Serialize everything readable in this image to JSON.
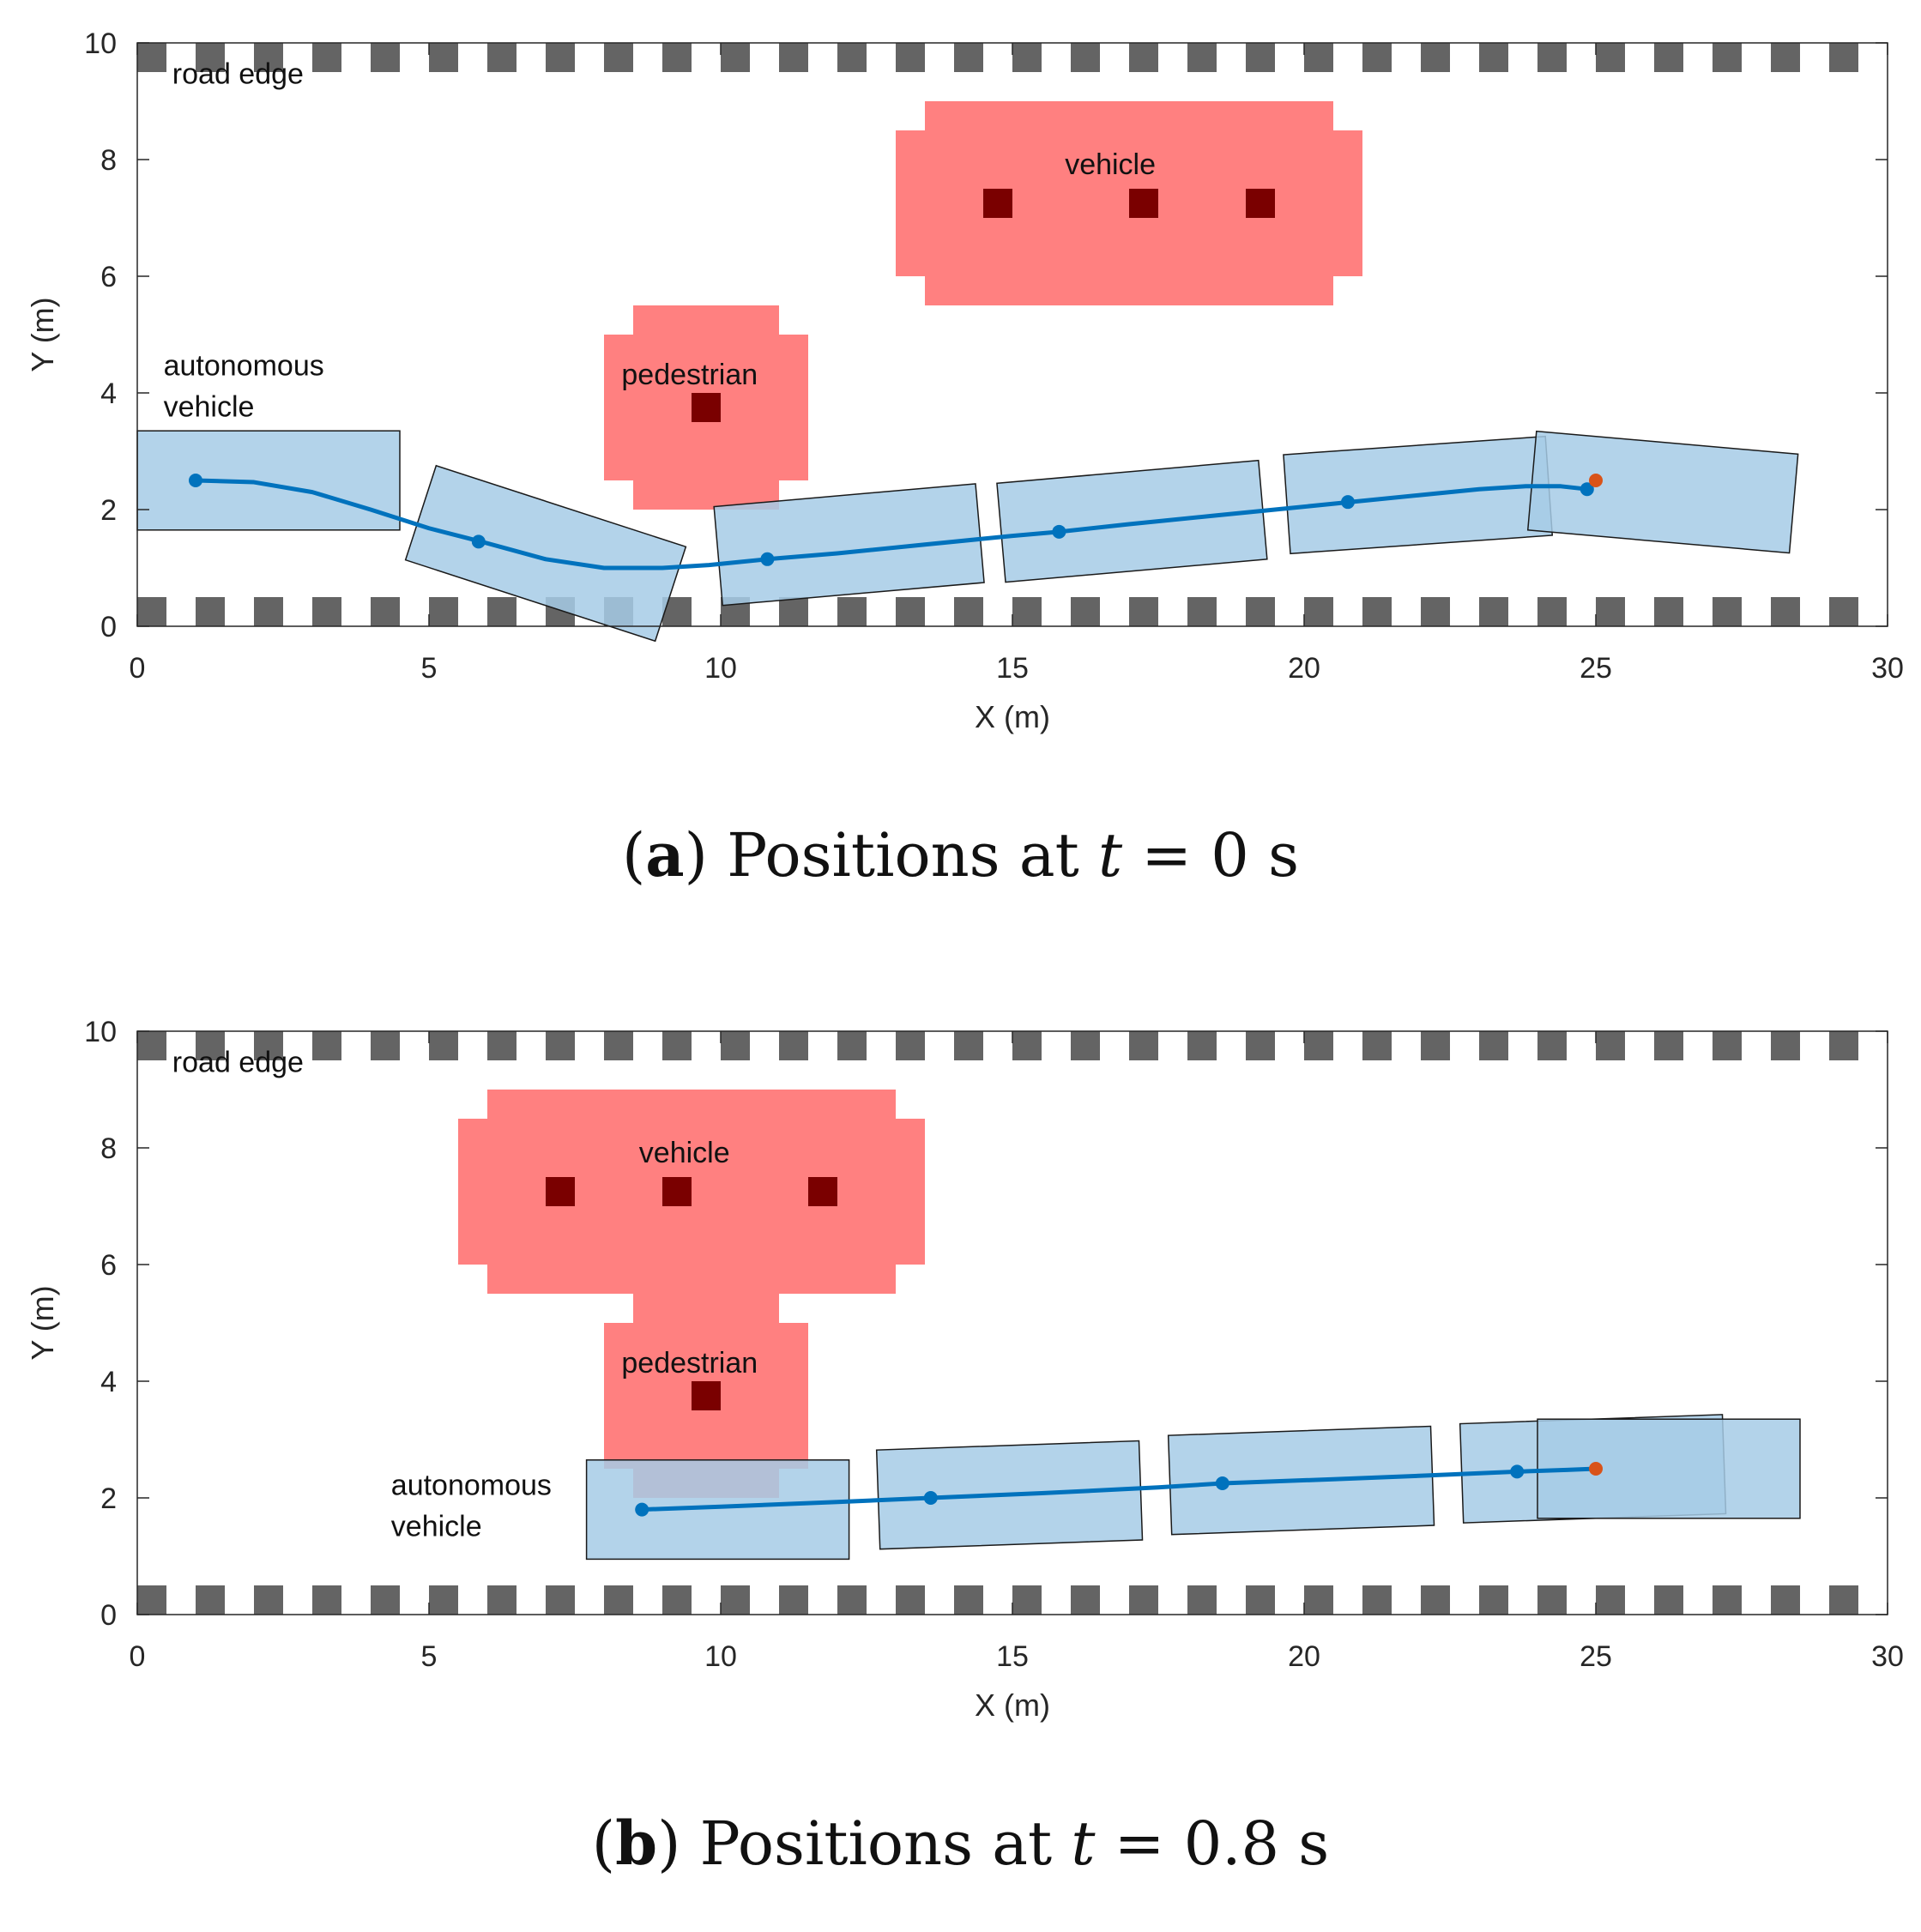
{
  "colors": {
    "ego_fill": "#a6cbe6",
    "ego_overlap": "#4682b4",
    "path": "#0072bd",
    "goal": "#d95319",
    "occupancy": "#ff8080",
    "occupancy_center": "#7a0000",
    "road_marking": "#646464",
    "axis": "#262626"
  },
  "chart_data": [
    {
      "type": "scatter",
      "panel": "a",
      "caption": {
        "label": "a",
        "text": "Positions at",
        "var": "t",
        "rest": "= 0 s"
      },
      "xlabel": "X (m)",
      "ylabel": "Y (m)",
      "xlim": [
        0,
        30
      ],
      "ylim": [
        0,
        10
      ],
      "xticks": [
        0,
        5,
        10,
        15,
        20,
        25,
        30
      ],
      "yticks": [
        0,
        2,
        4,
        6,
        8,
        10
      ],
      "annotations": [
        {
          "name": "road-edge",
          "lines": [
            "road edge"
          ],
          "x": 0.6,
          "y": 9.3
        },
        {
          "name": "ego",
          "lines": [
            "autonomous",
            "vehicle"
          ],
          "x": 0.45,
          "y": 4.3
        },
        {
          "name": "pedestrian",
          "lines": [
            "pedestrian"
          ],
          "x": 8.3,
          "y": 4.15
        },
        {
          "name": "obstacle-vehicle",
          "lines": [
            "vehicle"
          ],
          "x": 15.9,
          "y": 7.75
        }
      ],
      "road_edges": {
        "y_top": [
          9.5,
          10.0
        ],
        "y_bottom": [
          0.0,
          0.5
        ],
        "dash_start": 0.0,
        "dash_len": 0.5,
        "period": 1.0
      },
      "occupancy": [
        {
          "name": "pedestrian-zone",
          "label": "pedestrian",
          "rects": [
            [
              8.5,
              2.0,
              11.0,
              5.5
            ],
            [
              8.0,
              2.5,
              11.5,
              5.0
            ]
          ],
          "centers": [
            [
              9.75,
              3.75
            ]
          ]
        },
        {
          "name": "vehicle-zone",
          "label": "vehicle",
          "rects": [
            [
              13.5,
              5.5,
              20.5,
              9.0
            ],
            [
              13.0,
              6.0,
              21.0,
              8.5
            ]
          ],
          "centers": [
            [
              14.75,
              7.25
            ],
            [
              17.25,
              7.25
            ],
            [
              19.25,
              7.25
            ]
          ]
        }
      ],
      "ego_boxes": [
        {
          "cx": 2.25,
          "cy": 2.5,
          "length": 4.5,
          "width": 1.7,
          "heading_deg": 0
        },
        {
          "cx": 7.0,
          "cy": 1.25,
          "length": 4.5,
          "width": 1.7,
          "heading_deg": -18
        },
        {
          "cx": 12.2,
          "cy": 1.4,
          "length": 4.5,
          "width": 1.7,
          "heading_deg": 5
        },
        {
          "cx": 17.05,
          "cy": 1.8,
          "length": 4.5,
          "width": 1.7,
          "heading_deg": 5
        },
        {
          "cx": 21.95,
          "cy": 2.25,
          "length": 4.5,
          "width": 1.7,
          "heading_deg": 4
        },
        {
          "cx": 26.15,
          "cy": 2.3,
          "length": 4.5,
          "width": 1.7,
          "heading_deg": -5
        }
      ],
      "path": {
        "x": [
          1.0,
          2.0,
          3.0,
          4.0,
          5.0,
          5.9,
          7.0,
          8.0,
          9.0,
          9.8,
          10.8,
          12.0,
          13.5,
          15.0,
          15.8,
          17.0,
          18.5,
          20.0,
          20.8,
          22.0,
          23.0,
          23.8,
          24.4,
          24.85
        ],
        "y": [
          2.5,
          2.47,
          2.3,
          2.0,
          1.68,
          1.45,
          1.15,
          1.0,
          1.0,
          1.05,
          1.15,
          1.25,
          1.4,
          1.55,
          1.62,
          1.75,
          1.9,
          2.05,
          2.13,
          2.25,
          2.35,
          2.4,
          2.4,
          2.35
        ]
      },
      "waypoints": {
        "x": [
          1.0,
          5.85,
          10.8,
          15.8,
          20.75,
          24.85
        ],
        "y": [
          2.5,
          1.45,
          1.15,
          1.62,
          2.13,
          2.35
        ]
      },
      "goal": {
        "x": 25.0,
        "y": 2.5
      }
    },
    {
      "type": "scatter",
      "panel": "b",
      "caption": {
        "label": "b",
        "text": "Positions at",
        "var": "t",
        "rest": "= 0.8 s"
      },
      "xlabel": "X (m)",
      "ylabel": "Y (m)",
      "xlim": [
        0,
        30
      ],
      "ylim": [
        0,
        10
      ],
      "xticks": [
        0,
        5,
        10,
        15,
        20,
        25,
        30
      ],
      "yticks": [
        0,
        2,
        4,
        6,
        8,
        10
      ],
      "annotations": [
        {
          "name": "road-edge",
          "lines": [
            "road edge"
          ],
          "x": 0.6,
          "y": 9.3
        },
        {
          "name": "ego",
          "lines": [
            "autonomous",
            "vehicle"
          ],
          "x": 4.35,
          "y": 2.05
        },
        {
          "name": "pedestrian",
          "lines": [
            "pedestrian"
          ],
          "x": 8.3,
          "y": 4.15
        },
        {
          "name": "obstacle-vehicle",
          "lines": [
            "vehicle"
          ],
          "x": 8.6,
          "y": 7.75
        }
      ],
      "road_edges": {
        "y_top": [
          9.5,
          10.0
        ],
        "y_bottom": [
          0.0,
          0.5
        ],
        "dash_start": 0.0,
        "dash_len": 0.5,
        "period": 1.0
      },
      "occupancy": [
        {
          "name": "pedestrian-zone",
          "label": "pedestrian",
          "rects": [
            [
              8.5,
              2.0,
              11.0,
              5.5
            ],
            [
              8.0,
              2.5,
              11.5,
              5.0
            ]
          ],
          "centers": [
            [
              9.75,
              3.75
            ]
          ]
        },
        {
          "name": "vehicle-zone",
          "label": "vehicle",
          "rects": [
            [
              6.0,
              5.5,
              13.0,
              9.0
            ],
            [
              5.5,
              6.0,
              13.5,
              8.5
            ]
          ],
          "centers": [
            [
              7.25,
              7.25
            ],
            [
              9.25,
              7.25
            ],
            [
              11.75,
              7.25
            ]
          ]
        }
      ],
      "ego_boxes": [
        {
          "cx": 9.95,
          "cy": 1.8,
          "length": 4.5,
          "width": 1.7,
          "heading_deg": 0
        },
        {
          "cx": 14.95,
          "cy": 2.05,
          "length": 4.5,
          "width": 1.7,
          "heading_deg": 2
        },
        {
          "cx": 19.95,
          "cy": 2.3,
          "length": 4.5,
          "width": 1.7,
          "heading_deg": 2
        },
        {
          "cx": 24.95,
          "cy": 2.5,
          "length": 4.5,
          "width": 1.7,
          "heading_deg": 2
        },
        {
          "cx": 26.25,
          "cy": 2.5,
          "length": 4.5,
          "width": 1.7,
          "heading_deg": 0
        }
      ],
      "path": {
        "x": [
          8.65,
          10.0,
          12.0,
          13.6,
          15.5,
          17.5,
          18.6,
          20.5,
          22.5,
          23.65,
          24.5,
          25.0
        ],
        "y": [
          1.8,
          1.85,
          1.93,
          2.0,
          2.08,
          2.18,
          2.25,
          2.32,
          2.4,
          2.45,
          2.48,
          2.5
        ]
      },
      "waypoints": {
        "x": [
          8.65,
          13.6,
          18.6,
          23.65
        ],
        "y": [
          1.8,
          2.0,
          2.25,
          2.45
        ]
      },
      "goal": {
        "x": 25.0,
        "y": 2.5
      }
    }
  ]
}
